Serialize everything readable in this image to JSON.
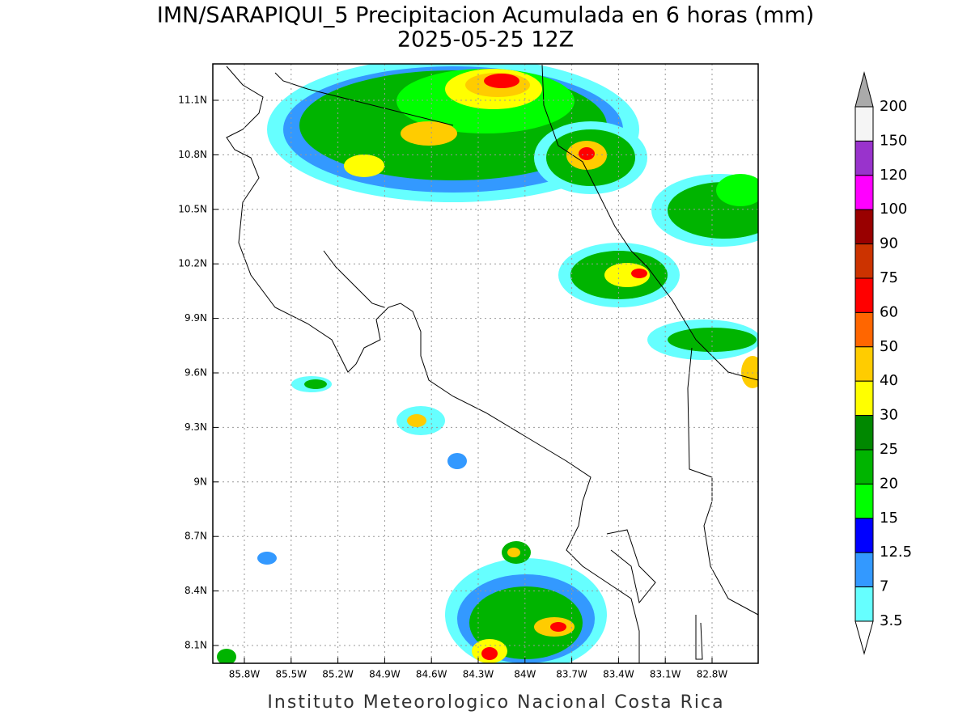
{
  "title": "IMN/SARAPIQUI_5 Precipitacion Acumulada en 6 horas (mm)",
  "subtitle": "2025-05-25 12Z",
  "map": {
    "lat_labels": [
      "11.1N",
      "10.8N",
      "10.5N",
      "10.2N",
      "9.9N",
      "9.6N",
      "9.3N",
      "9N",
      "8.7N",
      "8.4N",
      "8.1N"
    ],
    "lon_labels": [
      "85.8W",
      "85.5W",
      "85.2W",
      "84.9W",
      "84.6W",
      "84.3W",
      "84W",
      "83.7W",
      "83.4W",
      "83.1W",
      "82.8W"
    ]
  },
  "colorbar": {
    "levels": [
      200,
      150,
      120,
      100,
      90,
      75,
      60,
      50,
      40,
      30,
      25,
      20,
      15,
      12.5,
      7,
      3.5
    ],
    "colors": [
      "#f5f5f5",
      "#9933cc",
      "#ff00ff",
      "#990000",
      "#cc3300",
      "#ff0000",
      "#ff6600",
      "#ffcc00",
      "#ffff00",
      "#008800",
      "#00b400",
      "#00ff00",
      "#0000ff",
      "#3399ff",
      "#66ffff"
    ],
    "over_color": "#aaaaaa",
    "under_color": "#ffffff"
  },
  "footer": "Instituto Meteorologico Nacional Costa Rica"
}
